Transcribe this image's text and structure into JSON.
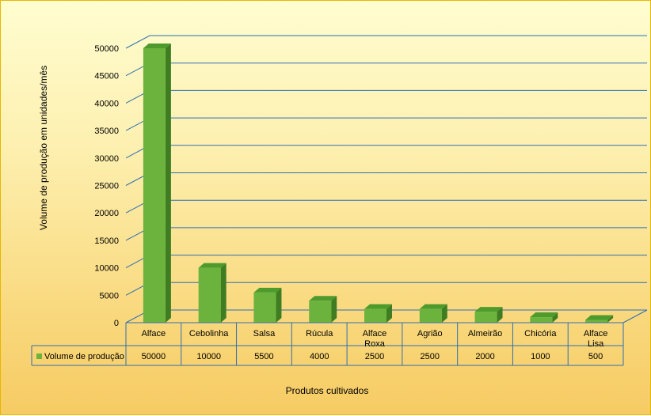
{
  "chart_data": {
    "type": "bar",
    "title": "",
    "xlabel": "Produtos cultivados",
    "ylabel": "Volume de produção em unidades/mês",
    "categories": [
      "Alface",
      "Cebolinha",
      "Salsa",
      "Rúcula",
      "Alface Roxa",
      "Agrião",
      "Almeirão",
      "Chicória",
      "Alface Lisa"
    ],
    "category_lines": [
      [
        "Alface"
      ],
      [
        "Cebolinha"
      ],
      [
        "Salsa"
      ],
      [
        "Rúcula"
      ],
      [
        "Alface",
        "Roxa"
      ],
      [
        "Agrião"
      ],
      [
        "Almeirão"
      ],
      [
        "Chicória"
      ],
      [
        "Alface",
        "Lisa"
      ]
    ],
    "series": [
      {
        "name": "Volume de produção",
        "values": [
          50000,
          10000,
          5500,
          4000,
          2500,
          2500,
          2000,
          1000,
          500
        ]
      }
    ],
    "ylim": [
      0,
      50000
    ],
    "yticks": [
      0,
      5000,
      10000,
      15000,
      20000,
      25000,
      30000,
      35000,
      40000,
      45000,
      50000
    ],
    "grid": true,
    "legend": "data-table-row",
    "style_3d": true,
    "colors": {
      "bar": "#6cb33e",
      "bar_top": "#4e9a2c",
      "bar_side": "#3f7d22",
      "grid": "#2f6fb0",
      "background": "#fbe4a0"
    }
  }
}
